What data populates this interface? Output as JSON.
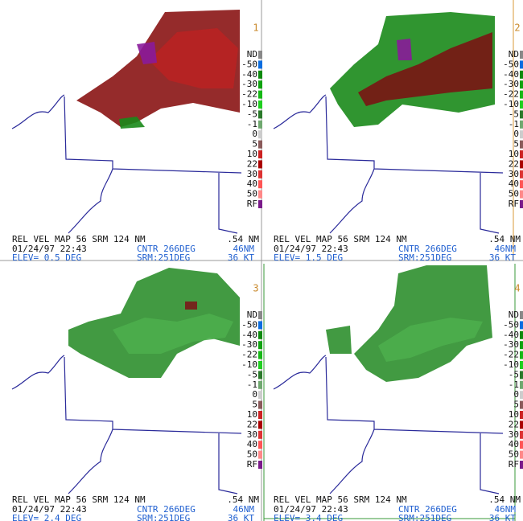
{
  "legend": [
    "ND",
    "-50",
    "-40",
    "-30",
    "-22",
    "-10",
    "-5",
    "-1",
    "0",
    "5",
    "10",
    "22",
    "30",
    "40",
    "50",
    "RF"
  ],
  "panels": [
    {
      "number": "1",
      "product": "REL VEL MAP 56 SRM 124 NM",
      "resolution": ".54 NM",
      "datetime": "01/24/97 22:43",
      "center": "CNTR 266DEG",
      "range": "46NM",
      "elevation": "ELEV= 0.5 DEG",
      "storm_motion": "SRM:251DEG",
      "speed": "36 KT"
    },
    {
      "number": "2",
      "product": "REL VEL MAP 56 SRM 124 NM",
      "resolution": ".54 NM",
      "datetime": "01/24/97 22:43",
      "center": "CNTR 266DEG",
      "range": "46NM",
      "elevation": "ELEV= 1.5 DEG",
      "storm_motion": "SRM:251DEG",
      "speed": "36 KT"
    },
    {
      "number": "3",
      "product": "REL VEL MAP 56 SRM 124 NM",
      "resolution": ".54 NM",
      "datetime": "01/24/97 22:43",
      "center": "CNTR 266DEG",
      "range": "46NM",
      "elevation": "ELEV= 2.4 DEG",
      "storm_motion": "SRM:251DEG",
      "speed": "36 KT"
    },
    {
      "number": "4",
      "product": "REL VEL MAP 56 SRM 124 NM",
      "resolution": ".54 NM",
      "datetime": "01/24/97 22:43",
      "center": "CNTR 266DEG",
      "range": "46NM",
      "elevation": "ELEV= 3.4 DEG",
      "storm_motion": "SRM:251DEG",
      "speed": "36 KT"
    }
  ]
}
